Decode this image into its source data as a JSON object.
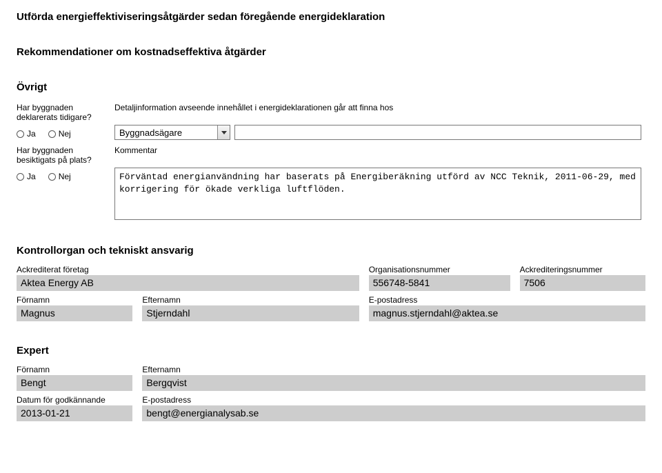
{
  "headings": {
    "title1": "Utförda energieffektiviseringsåtgärder sedan föregående energideklaration",
    "title2": "Rekommendationer om kostnadseffektiva åtgärder",
    "ovrigt": "Övrigt",
    "kontroll": "Kontrollorgan och tekniskt ansvarig",
    "expert": "Expert"
  },
  "ovrigt": {
    "q1": "Har byggnaden deklarerats tidigare?",
    "q2": "Har byggnaden besiktigats på plats?",
    "ja": "Ja",
    "nej": "Nej",
    "detalj": "Detaljinformation avseende innehållet i energideklarationen går att finna hos",
    "dropdown": "Byggnadsägare",
    "kommentar_label": "Kommentar",
    "kommentar_text": "Förväntad energianvändning har baserats på Energiberäkning utförd av NCC Teknik, 2011-06-29, med korrigering för ökade verkliga luftflöden."
  },
  "kontroll": {
    "cols": {
      "ack_foretag": "Ackrediterat företag",
      "orgnr": "Organisationsnummer",
      "acknr": "Ackrediteringsnummer",
      "fornamn": "Förnamn",
      "efternamn": "Efternamn",
      "epost": "E-postadress"
    },
    "vals": {
      "ack_foretag": "Aktea Energy AB",
      "orgnr": "556748-5841",
      "acknr": "7506",
      "fornamn": "Magnus",
      "efternamn": "Stjerndahl",
      "epost": "magnus.stjerndahl@aktea.se"
    }
  },
  "expert": {
    "cols": {
      "fornamn": "Förnamn",
      "efternamn": "Efternamn",
      "datum": "Datum för godkännande",
      "epost": "E-postadress"
    },
    "vals": {
      "fornamn": "Bengt",
      "efternamn": "Bergqvist",
      "datum": "2013-01-21",
      "epost": "bengt@energianalysab.se"
    }
  },
  "layout": {
    "kontroll_row1_widths": [
      "56%",
      "24%",
      "20%"
    ],
    "kontroll_row2_widths": [
      "20%",
      "36%",
      "44%"
    ],
    "expert_row_widths": [
      "20%",
      "80%"
    ]
  }
}
